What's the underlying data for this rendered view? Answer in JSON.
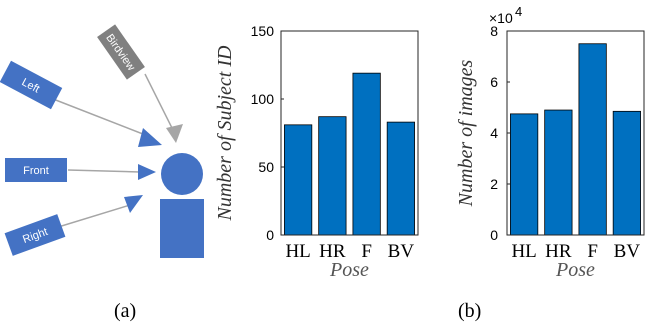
{
  "diagram": {
    "labels": {
      "birdview": "Birdview",
      "left": "Left",
      "front": "Front",
      "right": "Right"
    },
    "colors": {
      "camera_box": "#4472c4",
      "birdview_box": "#808080",
      "arrow_line": "#a6a6a6",
      "arrow_head": "#4472c4",
      "person": "#4472c4"
    }
  },
  "captions": {
    "a": "(a)",
    "b": "(b)"
  },
  "chart_data": [
    {
      "type": "bar",
      "categories": [
        "HL",
        "HR",
        "F",
        "BV"
      ],
      "values": [
        81,
        87,
        119,
        83
      ],
      "xlabel": "Pose",
      "ylabel": "Number of Subject ID",
      "ylim": [
        0,
        150
      ],
      "yticks": [
        0,
        50,
        100,
        150
      ],
      "ytick_labels": [
        "0",
        "50",
        "100",
        "150"
      ],
      "bar_color": "#0070c0",
      "grid": false
    },
    {
      "type": "bar",
      "categories": [
        "HL",
        "HR",
        "F",
        "BV"
      ],
      "values": [
        47500,
        49000,
        75000,
        48500
      ],
      "xlabel": "Pose",
      "ylabel": "Number of images",
      "ylim": [
        0,
        80000
      ],
      "yticks": [
        0,
        20000,
        40000,
        60000,
        80000
      ],
      "ytick_labels": [
        "0",
        "2",
        "4",
        "6",
        "8"
      ],
      "scale_label": "×10",
      "scale_exponent": "4",
      "bar_color": "#0070c0",
      "grid": false
    }
  ]
}
